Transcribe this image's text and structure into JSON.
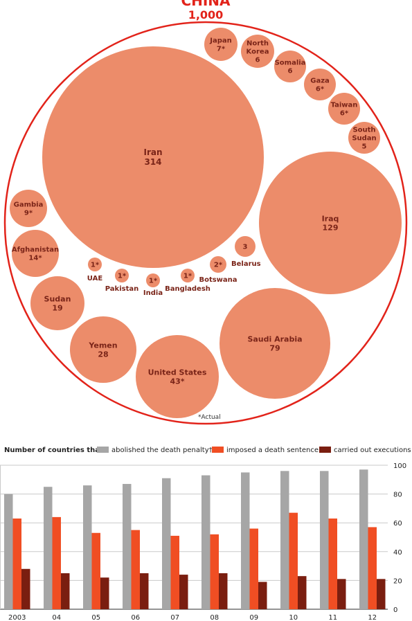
{
  "header": {
    "title": "CHINA",
    "value": "1,000"
  },
  "footnote": "*Actual",
  "bubbles": [
    {
      "name": "Iran",
      "value": "314"
    },
    {
      "name": "Iraq",
      "value": "129"
    },
    {
      "name": "Saudi Arabia",
      "value": "79"
    },
    {
      "name": "United States",
      "value": "43*"
    },
    {
      "name": "Yemen",
      "value": "28"
    },
    {
      "name": "Sudan",
      "value": "19"
    },
    {
      "name": "Afghanistan",
      "value": "14*"
    },
    {
      "name": "Gambia",
      "value": "9*"
    },
    {
      "name": "Japan",
      "value": "7*"
    },
    {
      "name": "North Korea",
      "value": "6"
    },
    {
      "name": "Somalia",
      "value": "6"
    },
    {
      "name": "Gaza",
      "value": "6*"
    },
    {
      "name": "Taiwan",
      "value": "6*"
    },
    {
      "name": "South Sudan",
      "value": "5"
    },
    {
      "name": "Belarus",
      "value": "3"
    },
    {
      "name": "Botswana",
      "value": "2*"
    },
    {
      "name": "Bangladesh",
      "value": "1*"
    },
    {
      "name": "India",
      "value": "1*"
    },
    {
      "name": "Pakistan",
      "value": "1*"
    },
    {
      "name": "UAE",
      "value": "1*"
    }
  ],
  "colors": {
    "bubble": "#ec8c6a",
    "outer_ring": "#e2231a",
    "label": "#7a2418",
    "abolished": "#a6a6a6",
    "sentence": "#f04e23",
    "executions": "#7a1e10",
    "gridline": "#c9c9c9"
  },
  "legend": {
    "prefix": "Number of countries that:",
    "abolished": "abolished the death penalty†",
    "sentence": "imposed a death sentence",
    "executions": "carried out executions"
  },
  "chart_data": {
    "type": "bar",
    "categories": [
      "2003",
      "04",
      "05",
      "06",
      "07",
      "08",
      "09",
      "10",
      "11",
      "12"
    ],
    "series": [
      {
        "name": "abolished the death penalty†",
        "values": [
          80,
          85,
          86,
          87,
          91,
          93,
          95,
          96,
          96,
          97
        ]
      },
      {
        "name": "imposed a death sentence",
        "values": [
          63,
          64,
          53,
          55,
          51,
          52,
          56,
          67,
          63,
          57
        ]
      },
      {
        "name": "carried out executions",
        "values": [
          28,
          25,
          22,
          25,
          24,
          25,
          19,
          23,
          21,
          21
        ]
      }
    ],
    "yticks": [
      "0",
      "20",
      "40",
      "60",
      "80",
      "100"
    ],
    "ylim": [
      0,
      100
    ],
    "grid": true,
    "y_axis_side": "right",
    "legend_position": "top"
  }
}
